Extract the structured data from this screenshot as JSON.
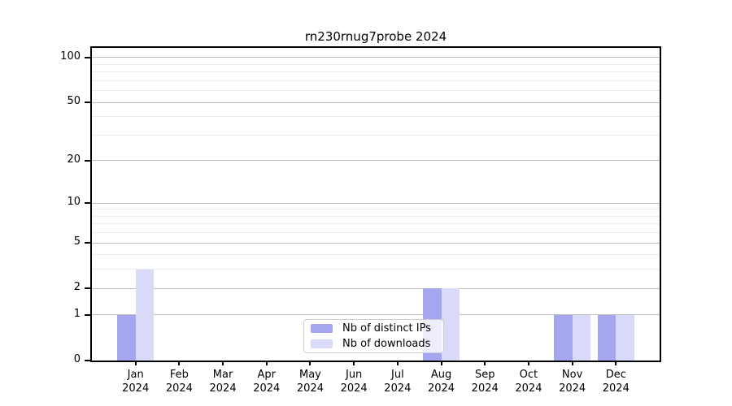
{
  "chart_data": {
    "type": "bar",
    "title": "rn230rnug7probe 2024",
    "x_month_labels": [
      "Jan",
      "Feb",
      "Mar",
      "Apr",
      "May",
      "Jun",
      "Jul",
      "Aug",
      "Sep",
      "Oct",
      "Nov",
      "Dec"
    ],
    "x_year_label": "2024",
    "series": [
      {
        "name": "Nb of distinct IPs",
        "color": "#a5a5f0",
        "values": [
          1,
          0,
          0,
          0,
          0,
          0,
          0,
          2,
          0,
          0,
          1,
          1
        ]
      },
      {
        "name": "Nb of downloads",
        "color": "#d9d9f8",
        "values": [
          3,
          0,
          0,
          0,
          0,
          0,
          0,
          2,
          0,
          0,
          1,
          1
        ]
      }
    ],
    "yscale": "log1p",
    "ylim": [
      0,
      116
    ],
    "yticks": [
      0,
      1,
      2,
      5,
      10,
      20,
      50,
      100
    ],
    "yticks_minor": [
      3,
      4,
      6,
      7,
      8,
      9,
      30,
      40,
      60,
      70,
      80,
      90
    ],
    "grid": "horizontal",
    "legend_position": "lower center"
  }
}
